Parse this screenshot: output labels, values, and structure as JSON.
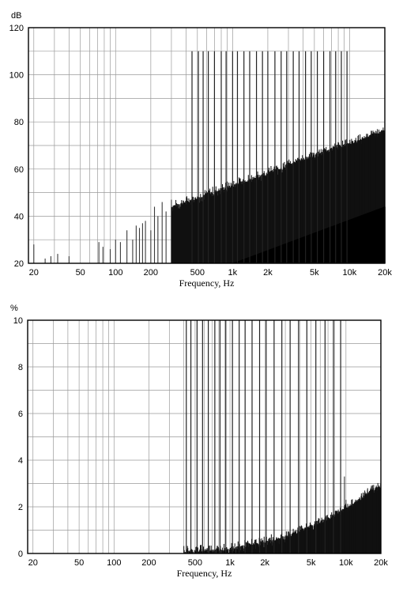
{
  "chart_data": [
    {
      "type": "bar",
      "xscale": "log",
      "xlim": [
        18,
        20000
      ],
      "ylim": [
        20,
        120
      ],
      "xlabel": "Frequency, Hz",
      "ylabel": "dB",
      "yticks": [
        20,
        40,
        60,
        80,
        100,
        120
      ],
      "ytick_labels": [
        "20",
        "40",
        "60",
        "80",
        "100",
        "120"
      ],
      "xticks": [
        20,
        50,
        100,
        200,
        500,
        1000,
        2000,
        5000,
        10000,
        20000
      ],
      "xtick_labels": [
        "20",
        "50",
        "100",
        "200",
        "500",
        "1k",
        "2k",
        "5k",
        "10k",
        "20k"
      ],
      "grid": true,
      "series": [
        {
          "envelope_upper": {
            "x": [
              300,
              20000
            ],
            "y": [
              44,
              76
            ]
          },
          "envelope_lower": {
            "x": [
              1000,
              20000
            ],
            "y": [
              20,
              44
            ]
          },
          "spikes_to_110": {
            "x": [
              450,
              510,
              560,
              620,
              700,
              800,
              880,
              1000,
              1100,
              1250,
              1400,
              1600,
              1800,
              2000,
              2300,
              2600,
              2900,
              3300,
              3700,
              4200,
              4700,
              5300,
              6000,
              6800,
              7600,
              8500,
              9500
            ],
            "y": 110
          },
          "isolated_peaks": {
            "x": [
              20,
              25,
              28,
              32,
              40,
              72,
              78,
              90,
              100,
              110,
              125,
              140,
              150,
              160,
              170,
              180,
              200,
              215,
              230,
              250,
              270,
              300
            ],
            "y": [
              28,
              22,
              23,
              24,
              23,
              29,
              27,
              26,
              30,
              29,
              34,
              30,
              36,
              35,
              37,
              38,
              34,
              44,
              40,
              46,
              42,
              47
            ]
          }
        }
      ]
    },
    {
      "type": "bar",
      "xscale": "log",
      "xlim": [
        18,
        20000
      ],
      "ylim": [
        0,
        10
      ],
      "xlabel": "Frequency, Hz",
      "ylabel": "%",
      "yticks": [
        0,
        2,
        4,
        6,
        8,
        10
      ],
      "ytick_labels": [
        "0",
        "2",
        "4",
        "6",
        "8",
        "10"
      ],
      "xticks": [
        20,
        50,
        100,
        200,
        500,
        1000,
        2000,
        5000,
        10000,
        20000
      ],
      "xtick_labels": [
        "20",
        "50",
        "100",
        "200",
        "500",
        "1k",
        "2k",
        "5k",
        "10k",
        "20k"
      ],
      "grid": true,
      "series": [
        {
          "envelope_upper": {
            "x": [
              400,
              1000,
              3000,
              6000,
              10000,
              14000,
              18000
            ],
            "y": [
              0.1,
              0.2,
              0.7,
              1.3,
              1.9,
              2.4,
              2.8
            ]
          },
          "spikes_to_10": {
            "x": [
              420,
              460,
              520,
              580,
              650,
              740,
              820,
              920,
              1050,
              1200,
              1350,
              1550,
              1800,
              2050,
              2400,
              2800,
              3300,
              3900,
              4600,
              5500,
              6600,
              7800,
              9000
            ],
            "y": 10
          },
          "isolated_peaks": {
            "x": [
              9700,
              10000,
              11000
            ],
            "y": [
              3.3,
              2.3,
              1.8
            ]
          }
        }
      ]
    }
  ]
}
